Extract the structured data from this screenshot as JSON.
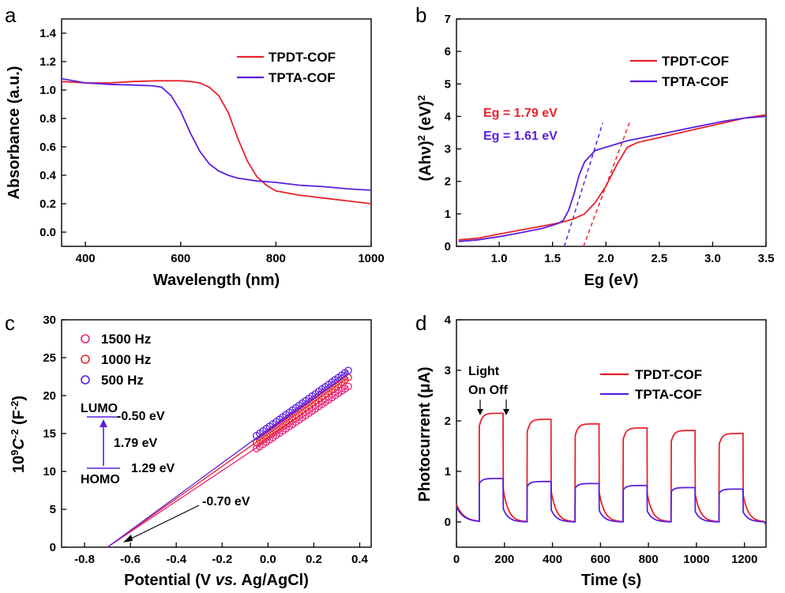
{
  "colors": {
    "red": "#e8222b",
    "blue": "#5b1fe0",
    "pink": "#e8247a",
    "black": "#000000"
  },
  "chart_data": [
    {
      "panel": "a",
      "type": "line",
      "xlabel": "Wavelength (nm)",
      "ylabel": "Absorbance (a.u.)",
      "xlim": [
        350,
        1000
      ],
      "ylim": [
        -0.1,
        1.5
      ],
      "xticks": [
        400,
        600,
        800,
        1000
      ],
      "yticks": [
        0.0,
        0.2,
        0.4,
        0.6,
        0.8,
        1.0,
        1.2,
        1.4
      ],
      "legend_position": "top-right",
      "series": [
        {
          "name": "TPDT-COF",
          "color": "#e8222b",
          "x": [
            350,
            400,
            450,
            500,
            550,
            600,
            620,
            640,
            660,
            680,
            700,
            720,
            740,
            760,
            780,
            800,
            850,
            900,
            950,
            1000
          ],
          "y": [
            1.06,
            1.05,
            1.05,
            1.06,
            1.065,
            1.065,
            1.06,
            1.05,
            1.02,
            0.96,
            0.84,
            0.66,
            0.5,
            0.39,
            0.33,
            0.29,
            0.26,
            0.24,
            0.22,
            0.2
          ]
        },
        {
          "name": "TPTA-COF",
          "color": "#5b1fe0",
          "x": [
            350,
            400,
            450,
            500,
            540,
            560,
            580,
            600,
            620,
            640,
            660,
            680,
            700,
            720,
            760,
            800,
            850,
            900,
            950,
            1000
          ],
          "y": [
            1.08,
            1.05,
            1.04,
            1.035,
            1.03,
            1.02,
            0.96,
            0.85,
            0.7,
            0.57,
            0.48,
            0.43,
            0.4,
            0.38,
            0.36,
            0.35,
            0.33,
            0.32,
            0.305,
            0.295
          ]
        }
      ]
    },
    {
      "panel": "b",
      "type": "line",
      "xlabel": "Eg (eV)",
      "ylabel": "(Ahν)² (eV)²",
      "ylabel_main": "(Ahν)",
      "ylabel_sup": "2",
      "ylabel_tail": " (eV)",
      "ylabel_sup2": "2",
      "xlim": [
        0.6,
        3.5
      ],
      "ylim": [
        0,
        7
      ],
      "xticks": [
        1.0,
        1.5,
        2.0,
        2.5,
        3.0,
        3.5
      ],
      "yticks": [
        0,
        1,
        2,
        3,
        4,
        5,
        6,
        7
      ],
      "legend_position": "top-right",
      "annotations": [
        {
          "text": "Eg = 1.79 eV",
          "color": "#e8222b"
        },
        {
          "text": "Eg = 1.61 eV",
          "color": "#5b1fe0"
        }
      ],
      "tangents": [
        {
          "color": "#e8222b",
          "x": [
            1.79,
            2.22
          ],
          "y": [
            0,
            3.8
          ]
        },
        {
          "color": "#5b1fe0",
          "x": [
            1.61,
            1.97
          ],
          "y": [
            0,
            3.8
          ]
        }
      ],
      "series": [
        {
          "name": "TPDT-COF",
          "color": "#e8222b",
          "x": [
            0.62,
            0.8,
            1.0,
            1.2,
            1.4,
            1.6,
            1.7,
            1.8,
            1.9,
            2.0,
            2.1,
            2.2,
            2.3,
            2.5,
            2.7,
            2.9,
            3.1,
            3.3,
            3.5
          ],
          "y": [
            0.2,
            0.25,
            0.38,
            0.5,
            0.62,
            0.75,
            0.85,
            1.0,
            1.35,
            1.85,
            2.5,
            3.05,
            3.2,
            3.35,
            3.5,
            3.65,
            3.8,
            3.95,
            4.05
          ]
        },
        {
          "name": "TPTA-COF",
          "color": "#5b1fe0",
          "x": [
            0.62,
            0.8,
            1.0,
            1.2,
            1.4,
            1.5,
            1.55,
            1.6,
            1.65,
            1.7,
            1.75,
            1.8,
            1.9,
            2.0,
            2.2,
            2.5,
            2.8,
            3.1,
            3.3,
            3.5
          ],
          "y": [
            0.15,
            0.2,
            0.3,
            0.42,
            0.55,
            0.65,
            0.7,
            0.8,
            1.1,
            1.6,
            2.2,
            2.6,
            2.95,
            3.05,
            3.25,
            3.45,
            3.65,
            3.85,
            3.95,
            4.0
          ]
        }
      ]
    },
    {
      "panel": "c",
      "type": "scatter",
      "xlabel_pre": "Potential (V ",
      "xlabel_ital": "vs.",
      "xlabel_post": " Ag/AgCl)",
      "ylabel_pre": "10",
      "ylabel_sup": "9",
      "ylabel_ital": "C",
      "ylabel_sup2": "-2",
      "ylabel_mid": " (F",
      "ylabel_sup3": "-2",
      "ylabel_end": ")",
      "xlim": [
        -0.9,
        0.45
      ],
      "ylim": [
        0,
        30
      ],
      "xticks": [
        -0.8,
        -0.6,
        -0.4,
        -0.2,
        0.0,
        0.2,
        0.4
      ],
      "yticks": [
        0,
        5,
        10,
        15,
        20,
        25,
        30
      ],
      "legend_position": "top-left",
      "annotations": {
        "intercept": "-0.70 eV",
        "lumo_label": "LUMO",
        "lumo_value": "-0.50 eV",
        "gap": "1.79 eV",
        "homo_label": "HOMO",
        "homo_value": "1.29 eV"
      },
      "series": [
        {
          "name": "1500 Hz",
          "color": "#e8247a",
          "x_start": -0.05,
          "x_end": 0.35,
          "y_start": 13.0,
          "y_end": 21.2,
          "fit_x0": -0.7
        },
        {
          "name": "1000 Hz",
          "color": "#e8222b",
          "x_start": -0.05,
          "x_end": 0.35,
          "y_start": 13.8,
          "y_end": 22.4,
          "fit_x0": -0.7
        },
        {
          "name": "500 Hz",
          "color": "#5b1fe0",
          "x_start": -0.05,
          "x_end": 0.35,
          "y_start": 14.7,
          "y_end": 23.3,
          "fit_x0": -0.7
        }
      ]
    },
    {
      "panel": "d",
      "type": "line",
      "xlabel": "Time (s)",
      "ylabel": "Photocurrent (μA)",
      "xlim": [
        0,
        1290
      ],
      "ylim": [
        -0.5,
        4
      ],
      "xticks": [
        0,
        200,
        400,
        600,
        800,
        1000,
        1200
      ],
      "yticks": [
        0,
        1,
        2,
        3,
        4
      ],
      "legend_position": "top-right",
      "annotations": {
        "line1": "Light",
        "line2": "On Off"
      },
      "on_periods": [
        [
          95,
          195
        ],
        [
          295,
          395
        ],
        [
          495,
          595
        ],
        [
          695,
          795
        ],
        [
          895,
          995
        ],
        [
          1095,
          1195
        ]
      ],
      "series": [
        {
          "name": "TPDT-COF",
          "color": "#e8222b",
          "start": 0.35,
          "baseline": 0.0,
          "peaks": [
            2.15,
            2.03,
            1.94,
            1.86,
            1.81,
            1.75
          ]
        },
        {
          "name": "TPTA-COF",
          "color": "#5b1fe0",
          "start": 0.3,
          "baseline": 0.0,
          "peaks": [
            0.86,
            0.8,
            0.76,
            0.72,
            0.68,
            0.65
          ]
        }
      ]
    }
  ]
}
